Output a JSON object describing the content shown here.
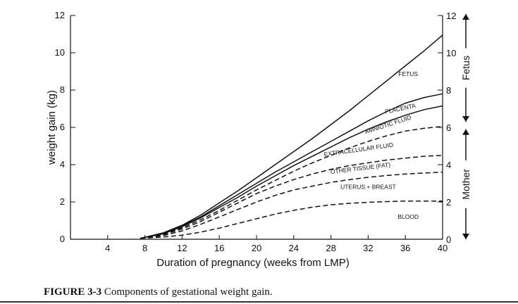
{
  "caption": {
    "label": "FIGURE 3-3",
    "text": "Components of gestational weight gain."
  },
  "chart_data": {
    "type": "line",
    "xlabel": "Duration of pregnancy (weeks from LMP)",
    "ylabel": "weight gain (kg)",
    "xlim": [
      0,
      40
    ],
    "ylim": [
      0,
      12
    ],
    "x_ticks": [
      4,
      8,
      12,
      16,
      20,
      24,
      28,
      32,
      36,
      40
    ],
    "y_ticks": [
      0,
      2,
      4,
      6,
      8,
      10,
      12
    ],
    "right_y_ticks": [
      0,
      2,
      4,
      6,
      8,
      10,
      12
    ],
    "grid": false,
    "right_axis_labels": {
      "fetus": "Fetus",
      "mother": "Mother"
    },
    "series": [
      {
        "name": "BLOOD",
        "style": "dashed",
        "x": [
          7.5,
          10,
          12,
          14,
          16,
          18,
          20,
          22,
          24,
          26,
          28,
          30,
          32,
          34,
          36,
          38,
          40
        ],
        "y": [
          0.05,
          0.12,
          0.22,
          0.38,
          0.6,
          0.85,
          1.1,
          1.35,
          1.55,
          1.72,
          1.85,
          1.93,
          1.98,
          2.02,
          2.05,
          2.05,
          2.05
        ]
      },
      {
        "name": "UTERUS + BREAST",
        "style": "dashed",
        "x": [
          7.5,
          10,
          12,
          14,
          16,
          18,
          20,
          22,
          24,
          26,
          28,
          30,
          32,
          34,
          36,
          38,
          40
        ],
        "y": [
          0.05,
          0.2,
          0.45,
          0.8,
          1.2,
          1.6,
          2.0,
          2.35,
          2.65,
          2.85,
          3.05,
          3.2,
          3.32,
          3.42,
          3.5,
          3.55,
          3.6
        ]
      },
      {
        "name": "OTHER TISSUE (FAT)",
        "style": "dashed",
        "x": [
          7.5,
          10,
          12,
          14,
          16,
          18,
          20,
          22,
          24,
          26,
          28,
          30,
          32,
          34,
          36,
          38,
          40
        ],
        "y": [
          0.05,
          0.25,
          0.55,
          0.95,
          1.45,
          1.95,
          2.45,
          2.85,
          3.2,
          3.5,
          3.75,
          3.95,
          4.1,
          4.25,
          4.35,
          4.45,
          4.5
        ]
      },
      {
        "name": "EXTRACELLULAR FLUID",
        "style": "dashed",
        "x": [
          7.5,
          10,
          12,
          14,
          16,
          18,
          20,
          22,
          24,
          26,
          28,
          30,
          32,
          34,
          36,
          38,
          40
        ],
        "y": [
          0.05,
          0.28,
          0.62,
          1.05,
          1.55,
          2.1,
          2.65,
          3.15,
          3.65,
          4.1,
          4.5,
          4.9,
          5.25,
          5.55,
          5.8,
          5.95,
          6.05
        ]
      },
      {
        "name": "AMNIOTIC FLUID",
        "style": "solid",
        "x": [
          7.5,
          10,
          12,
          14,
          16,
          18,
          20,
          22,
          24,
          26,
          28,
          30,
          32,
          34,
          36,
          38,
          40
        ],
        "y": [
          0.05,
          0.3,
          0.68,
          1.15,
          1.7,
          2.25,
          2.85,
          3.4,
          3.95,
          4.45,
          4.95,
          5.45,
          5.9,
          6.3,
          6.65,
          6.95,
          7.15
        ]
      },
      {
        "name": "PLACENTA",
        "style": "solid",
        "x": [
          7.5,
          10,
          12,
          14,
          16,
          18,
          20,
          22,
          24,
          26,
          28,
          30,
          32,
          34,
          36,
          38,
          40
        ],
        "y": [
          0.05,
          0.32,
          0.72,
          1.2,
          1.8,
          2.4,
          3.0,
          3.6,
          4.15,
          4.7,
          5.25,
          5.8,
          6.35,
          6.85,
          7.3,
          7.6,
          7.8
        ]
      },
      {
        "name": "FETUS",
        "style": "solid",
        "x": [
          7.5,
          10,
          12,
          14,
          16,
          18,
          20,
          22,
          24,
          26,
          28,
          30,
          32,
          34,
          36,
          38,
          40
        ],
        "y": [
          0.05,
          0.35,
          0.75,
          1.3,
          1.95,
          2.6,
          3.3,
          4.0,
          4.7,
          5.4,
          6.15,
          6.9,
          7.7,
          8.5,
          9.3,
          10.1,
          10.95
        ]
      }
    ]
  },
  "component_labels": [
    {
      "text": "FETUS",
      "x": 36.3,
      "y": 8.75,
      "rotate": 0
    },
    {
      "text": "PLACENTA",
      "x": 35.5,
      "y": 6.9,
      "rotate": -12
    },
    {
      "text": "AMNIOTIC FLUID",
      "x": 34.2,
      "y": 6.05,
      "rotate": -18
    },
    {
      "text": "EXTRACELLULAR FLUID",
      "x": 31.0,
      "y": 4.7,
      "rotate": -8
    },
    {
      "text": "OTHER TISSUE (FAT)",
      "x": 31.2,
      "y": 3.7,
      "rotate": -7
    },
    {
      "text": "UTERUS + BREAST",
      "x": 32.0,
      "y": 2.7,
      "rotate": 0
    },
    {
      "text": "BLOOD",
      "x": 36.3,
      "y": 1.1,
      "rotate": 0
    }
  ]
}
